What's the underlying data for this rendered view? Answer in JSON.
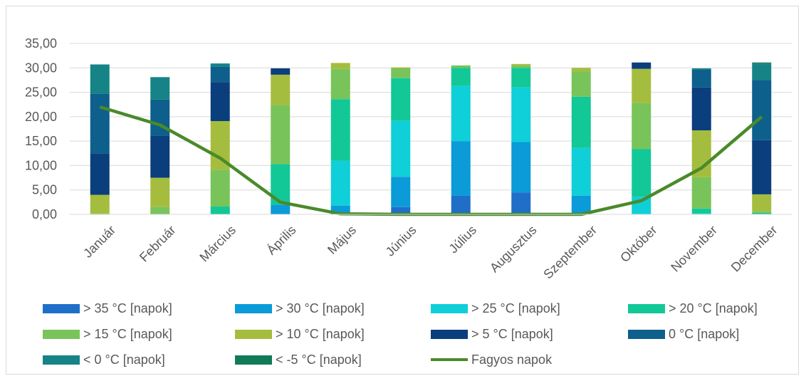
{
  "chart_data": {
    "type": "bar",
    "stacked": true,
    "categories": [
      "Január",
      "Február",
      "Március",
      "Április",
      "Május",
      "Június",
      "Július",
      "Augusztus",
      "Szeptember",
      "Október",
      "November",
      "December"
    ],
    "ylim": [
      0,
      35
    ],
    "yticks": [
      "0,00",
      "5,00",
      "10,00",
      "15,00",
      "20,00",
      "25,00",
      "30,00",
      "35,00"
    ],
    "grid": true,
    "legend_position": "bottom",
    "series": [
      {
        "name": "> 35 °C [napok]",
        "color": "#1f6fc9",
        "values": [
          0,
          0,
          0,
          0,
          0,
          1.5,
          3.8,
          4.5,
          0,
          0,
          0,
          0
        ]
      },
      {
        "name": "> 30 °C [napok]",
        "color": "#0a9bd8",
        "values": [
          0,
          0,
          0,
          2.0,
          1.8,
          6.2,
          11.2,
          10.3,
          3.8,
          0,
          0,
          0
        ]
      },
      {
        "name": "> 25 °C [napok]",
        "color": "#0fcfd9",
        "values": [
          0,
          0,
          0,
          0,
          9.2,
          11.5,
          11.3,
          11.2,
          9.8,
          3.6,
          0.2,
          0
        ]
      },
      {
        "name": "> 20 °C [napok]",
        "color": "#12c896",
        "values": [
          0,
          0,
          1.6,
          8.3,
          12.6,
          8.7,
          3.7,
          4.0,
          10.5,
          9.8,
          1.0,
          0.3
        ]
      },
      {
        "name": "> 15 °C [napok]",
        "color": "#78c45a",
        "values": [
          0.2,
          1.5,
          7.5,
          12.1,
          6.2,
          2.0,
          0.5,
          0.5,
          5.2,
          9.4,
          6.4,
          0.3
        ]
      },
      {
        "name": "> 10 °C [napok]",
        "color": "#a5bd3e",
        "values": [
          3.8,
          6.0,
          10.0,
          6.2,
          1.2,
          0.2,
          0,
          0.3,
          0.7,
          7.0,
          9.6,
          3.5
        ]
      },
      {
        "name": "> 5 °C [napok]",
        "color": "#0b3e7c",
        "values": [
          8.5,
          8.6,
          8.0,
          1.3,
          0,
          0,
          0,
          0,
          0,
          1.3,
          8.8,
          11.1
        ]
      },
      {
        "name": "0 °C [napok]",
        "color": "#0d5f8c",
        "values": [
          12.2,
          7.4,
          3.2,
          0,
          0,
          0,
          0,
          0,
          0,
          0,
          3.6,
          12.3
        ]
      },
      {
        "name": "< 0 °C [napok]",
        "color": "#168487",
        "values": [
          6.0,
          4.6,
          0.6,
          0,
          0,
          0,
          0,
          0,
          0,
          0,
          0.3,
          3.4
        ]
      },
      {
        "name": "< -5 °C [napok]",
        "color": "#137a58",
        "values": [
          0,
          0,
          0,
          0,
          0,
          0,
          0,
          0,
          0,
          0,
          0,
          0.2
        ]
      }
    ],
    "line_series": {
      "name": "Fagyos napok",
      "color": "#4a8a2a",
      "values": [
        22.0,
        18.3,
        11.5,
        2.5,
        0.1,
        0,
        0,
        0,
        0,
        2.8,
        9.5,
        20.0
      ]
    }
  }
}
